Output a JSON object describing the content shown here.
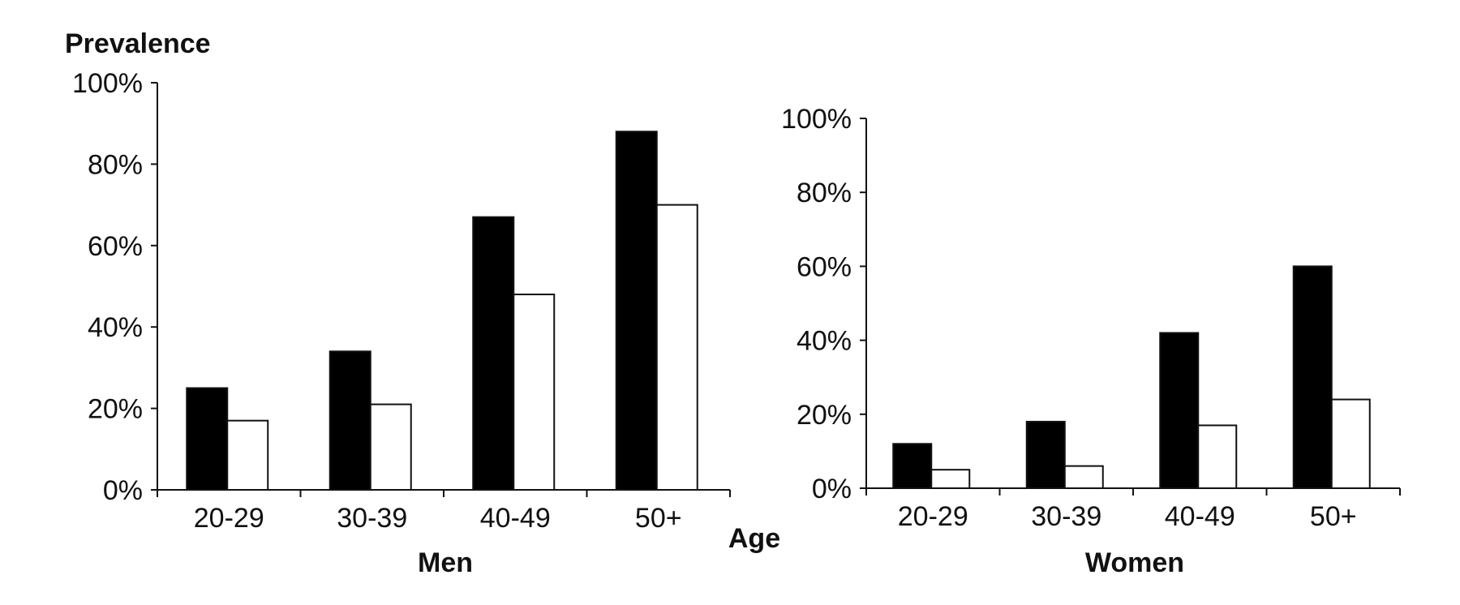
{
  "ylabel": "Prevalence",
  "xlabel": "Age",
  "chart_data": [
    {
      "type": "bar",
      "title": "Men",
      "categories": [
        "20-29",
        "30-39",
        "40-49",
        "50+"
      ],
      "series": [
        {
          "values": [
            25,
            34,
            67,
            88
          ],
          "color": "#000000"
        },
        {
          "values": [
            17,
            21,
            48,
            70
          ],
          "color": "#ffffff"
        }
      ],
      "ylim": [
        0,
        100
      ],
      "yticks": [
        "0%",
        "20%",
        "40%",
        "60%",
        "80%",
        "100%"
      ],
      "grid": false
    },
    {
      "type": "bar",
      "title": "Women",
      "categories": [
        "20-29",
        "30-39",
        "40-49",
        "50+"
      ],
      "series": [
        {
          "values": [
            12,
            18,
            42,
            60
          ],
          "color": "#000000"
        },
        {
          "values": [
            5,
            6,
            17,
            24
          ],
          "color": "#ffffff"
        }
      ],
      "ylim": [
        0,
        100
      ],
      "yticks": [
        "0%",
        "20%",
        "40%",
        "60%",
        "80%",
        "100%"
      ],
      "grid": false
    }
  ]
}
